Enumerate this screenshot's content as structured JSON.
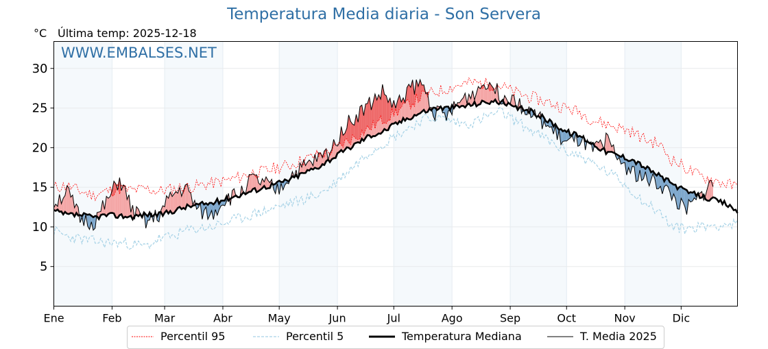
{
  "chart_data": {
    "type": "line",
    "title": "Temperatura Media diaria - Son Servera",
    "ylabel": "°C",
    "subtitle": "Última temp: 2025-12-18",
    "watermark": "WWW.EMBALSES.NET",
    "ylim": [
      0,
      33.4
    ],
    "yticks": [
      5,
      10,
      15,
      20,
      25,
      30
    ],
    "xticks": [
      "Ene",
      "Feb",
      "Mar",
      "Abr",
      "May",
      "Jun",
      "Jul",
      "Ago",
      "Sep",
      "Oct",
      "Nov",
      "Dic"
    ],
    "x_unit": "day_of_year_weekly",
    "x": [
      1,
      8,
      15,
      22,
      29,
      36,
      43,
      50,
      57,
      64,
      71,
      78,
      85,
      92,
      99,
      106,
      113,
      120,
      127,
      134,
      141,
      148,
      155,
      162,
      169,
      176,
      183,
      190,
      197,
      204,
      211,
      218,
      225,
      232,
      239,
      246,
      253,
      260,
      267,
      274,
      281,
      288,
      295,
      302,
      309,
      316,
      323,
      330,
      337,
      344,
      351,
      358,
      365
    ],
    "series": [
      {
        "name": "Percentil 95",
        "style": "dotted",
        "color": "#ff0000",
        "values": [
          15.0,
          15.2,
          14.5,
          14.0,
          14.5,
          14.8,
          14.6,
          14.8,
          14.5,
          14.8,
          15.0,
          15.2,
          15.5,
          15.8,
          16.2,
          16.8,
          17.0,
          17.5,
          17.8,
          18.5,
          19.0,
          19.5,
          20.5,
          21.5,
          22.5,
          23.5,
          24.5,
          25.5,
          26.5,
          27.0,
          27.5,
          28.0,
          28.2,
          28.0,
          27.8,
          27.0,
          26.5,
          26.0,
          25.5,
          25.0,
          24.5,
          23.5,
          23.0,
          22.5,
          22.0,
          21.0,
          20.5,
          18.5,
          17.5,
          16.5,
          16.0,
          15.5,
          15.0
        ]
      },
      {
        "name": "Percentil 5",
        "style": "dashed",
        "color": "#a6d2e6",
        "values": [
          9.5,
          8.8,
          8.5,
          8.2,
          8.0,
          8.0,
          7.8,
          7.5,
          8.5,
          8.8,
          9.5,
          9.8,
          10.0,
          10.5,
          11.0,
          11.5,
          12.0,
          12.5,
          13.0,
          13.5,
          14.0,
          15.0,
          16.5,
          18.0,
          19.5,
          20.5,
          21.5,
          22.5,
          23.5,
          23.8,
          23.5,
          23.0,
          23.2,
          24.0,
          24.5,
          23.5,
          22.5,
          21.5,
          20.5,
          19.5,
          19.0,
          18.0,
          17.0,
          16.0,
          14.5,
          13.0,
          12.0,
          10.0,
          9.8,
          10.0,
          10.2,
          10.3,
          10.3
        ]
      },
      {
        "name": "Temperatura Mediana",
        "style": "solid-thick",
        "color": "#000000",
        "values": [
          12.0,
          11.5,
          11.5,
          11.2,
          11.5,
          11.4,
          11.3,
          11.6,
          11.5,
          12.0,
          12.5,
          12.8,
          13.0,
          13.5,
          14.0,
          14.5,
          15.0,
          15.5,
          16.0,
          16.8,
          17.5,
          18.5,
          19.5,
          20.5,
          21.5,
          22.0,
          23.0,
          23.8,
          24.5,
          25.0,
          25.0,
          25.2,
          25.5,
          25.8,
          25.8,
          25.0,
          24.8,
          24.0,
          23.0,
          22.0,
          21.5,
          20.5,
          19.5,
          19.0,
          18.5,
          17.5,
          16.5,
          15.5,
          14.5,
          14.0,
          13.5,
          13.0,
          12.0
        ]
      },
      {
        "name": "T. Media 2025",
        "style": "solid-thin",
        "color": "#000000",
        "values": [
          13.0,
          14.5,
          11.0,
          10.5,
          13.0,
          16.0,
          12.0,
          10.5,
          11.5,
          14.0,
          15.0,
          12.0,
          11.5,
          13.5,
          14.0,
          16.0,
          15.5,
          14.5,
          16.5,
          17.5,
          18.5,
          19.5,
          22.5,
          24.0,
          25.5,
          27.0,
          25.0,
          27.5,
          28.0,
          24.5,
          24.0,
          26.0,
          27.0,
          28.5,
          26.5,
          26.5,
          24.5,
          23.5,
          22.0,
          20.5,
          21.0,
          19.5,
          21.0,
          18.5,
          17.0,
          16.0,
          15.5,
          14.0,
          12.0,
          13.5,
          15.5,
          14.0,
          null
        ]
      }
    ],
    "shaded_above": {
      "name": "T. Media 2025 above median",
      "color": "#f4a6a6"
    },
    "shaded_below": {
      "name": "T. Media 2025 below median",
      "color": "#7da7cc"
    },
    "legend": [
      "Percentil 95",
      "Percentil 5",
      "Temperatura Mediana",
      "T. Media 2025"
    ],
    "legend_position": "bottom-center",
    "grid": true
  }
}
